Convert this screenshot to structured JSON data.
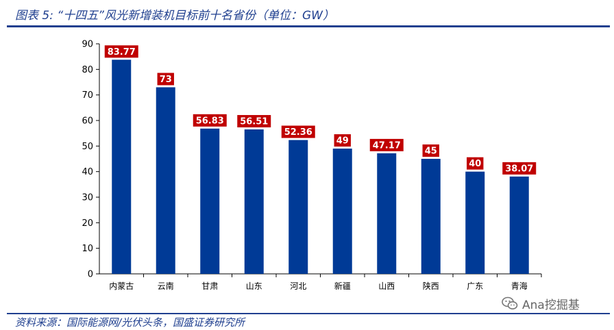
{
  "title": "图表 5:  “十四五”风光新增装机目标前十名省份（单位：GW）",
  "source": "资料来源：国际能源网/光伏头条，国盛证券研究所",
  "watermark": "Ana挖掘基",
  "colors": {
    "bar": "#003a96",
    "label_bg": "#c00000",
    "label_text": "#ffffff",
    "accent": "#1f3f8f"
  },
  "chart_data": {
    "type": "bar",
    "categories": [
      "内蒙古",
      "云南",
      "甘肃",
      "山东",
      "河北",
      "新疆",
      "山西",
      "陕西",
      "广东",
      "青海"
    ],
    "values": [
      83.77,
      73,
      56.83,
      56.51,
      52.36,
      49,
      47.17,
      45,
      40,
      38.07
    ],
    "value_labels": [
      "83.77",
      "73",
      "56.83",
      "56.51",
      "52.36",
      "49",
      "47.17",
      "45",
      "40",
      "38.07"
    ],
    "ylim": [
      0,
      90
    ],
    "yticks": [
      0,
      10,
      20,
      30,
      40,
      50,
      60,
      70,
      80,
      90
    ],
    "grid": false,
    "legend": "none"
  }
}
